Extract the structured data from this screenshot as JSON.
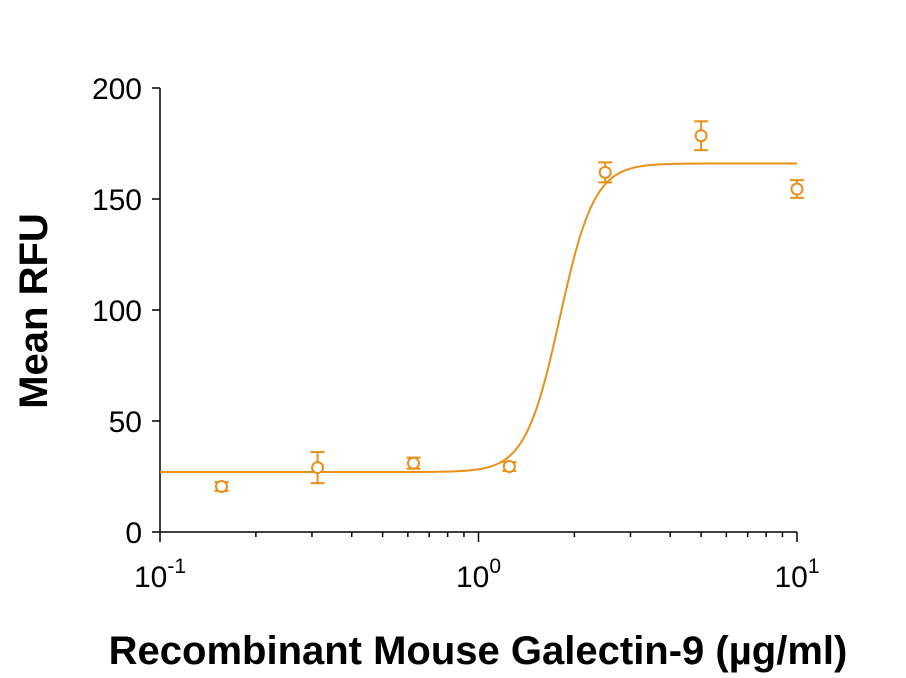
{
  "chart_data": {
    "type": "scatter",
    "xlabel": "Recombinant Mouse Galectin-9 (µg/ml)",
    "ylabel": "Mean RFU",
    "x_scale": "log",
    "xlim": [
      0.1,
      10
    ],
    "ylim": [
      0,
      200
    ],
    "x_ticks": [
      {
        "value": 0.1,
        "base": "10",
        "exp": "-1"
      },
      {
        "value": 1,
        "base": "10",
        "exp": "0"
      },
      {
        "value": 10,
        "base": "10",
        "exp": "1"
      }
    ],
    "y_ticks": [
      {
        "value": 0,
        "label": "0"
      },
      {
        "value": 50,
        "label": "50"
      },
      {
        "value": 100,
        "label": "100"
      },
      {
        "value": 150,
        "label": "150"
      },
      {
        "value": 200,
        "label": "200"
      }
    ],
    "grid": false,
    "color": "#E8901C",
    "points": [
      {
        "x": 0.156,
        "y": 20.5,
        "err": 2
      },
      {
        "x": 0.3125,
        "y": 29,
        "err": 7
      },
      {
        "x": 0.625,
        "y": 31,
        "err": 2.5
      },
      {
        "x": 1.25,
        "y": 29.5,
        "err": 2
      },
      {
        "x": 2.5,
        "y": 162,
        "err": 4.5
      },
      {
        "x": 5,
        "y": 178.5,
        "err": 6.5
      },
      {
        "x": 10,
        "y": 154.5,
        "err": 4
      }
    ],
    "fit_curve": {
      "type": "four-parameter-logistic",
      "bottom": 27,
      "top": 166,
      "ec50": 1.8,
      "hill": 8,
      "x_range": [
        0.1,
        10
      ]
    }
  }
}
